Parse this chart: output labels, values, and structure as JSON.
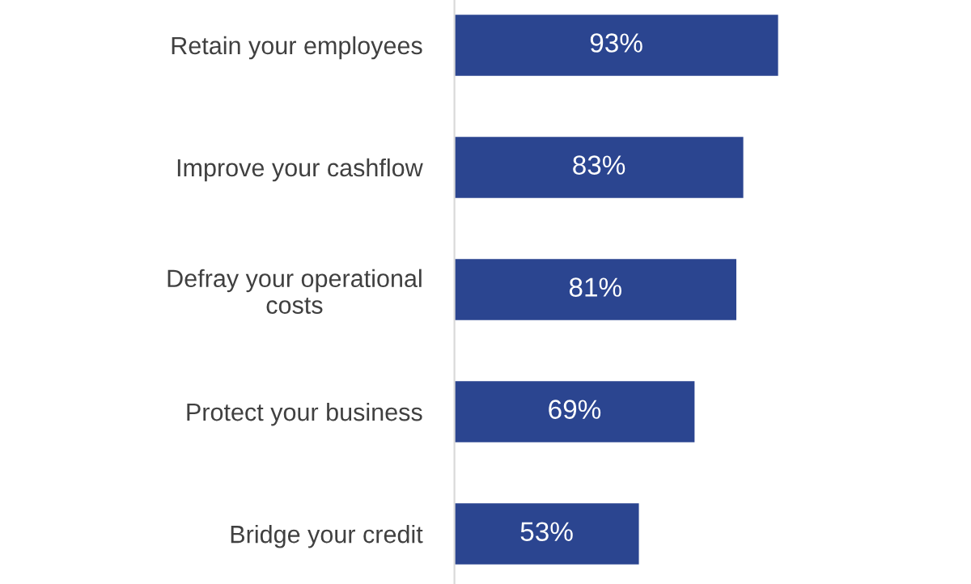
{
  "chart_data": {
    "type": "bar",
    "orientation": "horizontal",
    "categories": [
      "Retain your employees",
      "Improve your cashflow",
      "Defray your operational costs",
      "Protect your business",
      "Bridge your credit"
    ],
    "values": [
      93,
      83,
      81,
      69,
      53
    ],
    "value_labels": [
      "93%",
      "83%",
      "81%",
      "69%",
      "53%"
    ],
    "color": "#2b4590",
    "tick_labels": "y",
    "grid": false,
    "legend": false
  }
}
